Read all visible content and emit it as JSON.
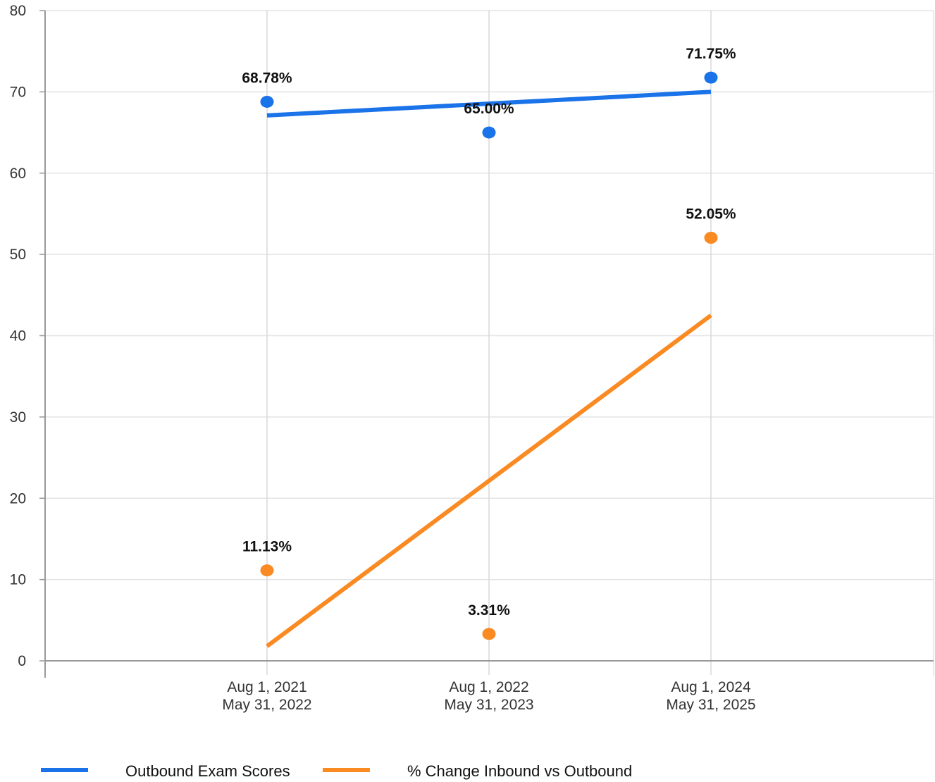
{
  "chart_data": {
    "type": "scatter",
    "categories": [
      [
        "Aug 1, 2021",
        "May 31, 2022"
      ],
      [
        "Aug 1, 2022",
        "May 31, 2023"
      ],
      [
        "Aug 1, 2024",
        "May 31, 2025"
      ]
    ],
    "ylim": [
      0,
      80
    ],
    "yticks": [
      "0",
      "10",
      "20",
      "30",
      "40",
      "50",
      "60",
      "70",
      "80"
    ],
    "grid": true,
    "legend_position": "bottom-left",
    "series": [
      {
        "name": "Outbound Exam Scores",
        "color": "#1a73e8",
        "values": [
          68.78,
          65.0,
          71.75
        ],
        "labels": [
          "68.78%",
          "65.00%",
          "71.75%"
        ],
        "trendline": [
          67.1,
          70.0
        ]
      },
      {
        "name": "% Change Inbound vs Outbound",
        "color": "#fa8a22",
        "values": [
          11.13,
          3.31,
          52.05
        ],
        "labels": [
          "11.13%",
          "3.31%",
          "52.05%"
        ],
        "trendline": [
          1.8,
          42.5
        ]
      }
    ]
  }
}
